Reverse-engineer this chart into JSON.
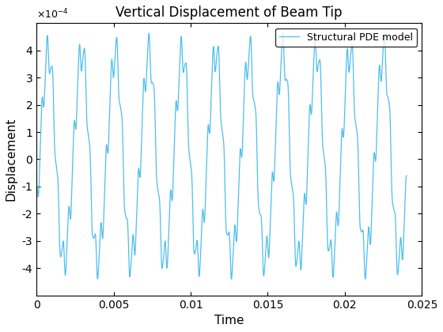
{
  "title": "Vertical Displacement of Beam Tip",
  "xlabel": "Time",
  "ylabel": "Displacement",
  "legend_label": "Structural PDE model",
  "line_color": "#4DBEEE",
  "xlim": [
    0,
    0.025
  ],
  "ylim": [
    -0.0005,
    0.0005
  ],
  "xticks": [
    0,
    0.005,
    0.01,
    0.015,
    0.02,
    0.025
  ],
  "ytick_vals": [
    -4,
    -3,
    -2,
    -1,
    0,
    1,
    2,
    3,
    4
  ],
  "yticks": [
    -0.0004,
    -0.0003,
    -0.0002,
    -0.0001,
    0,
    0.0001,
    0.0002,
    0.0003,
    0.0004
  ],
  "figsize": [
    5.6,
    4.2
  ],
  "dpi": 100,
  "title_fontsize": 12,
  "label_fontsize": 11,
  "linewidth": 0.9
}
